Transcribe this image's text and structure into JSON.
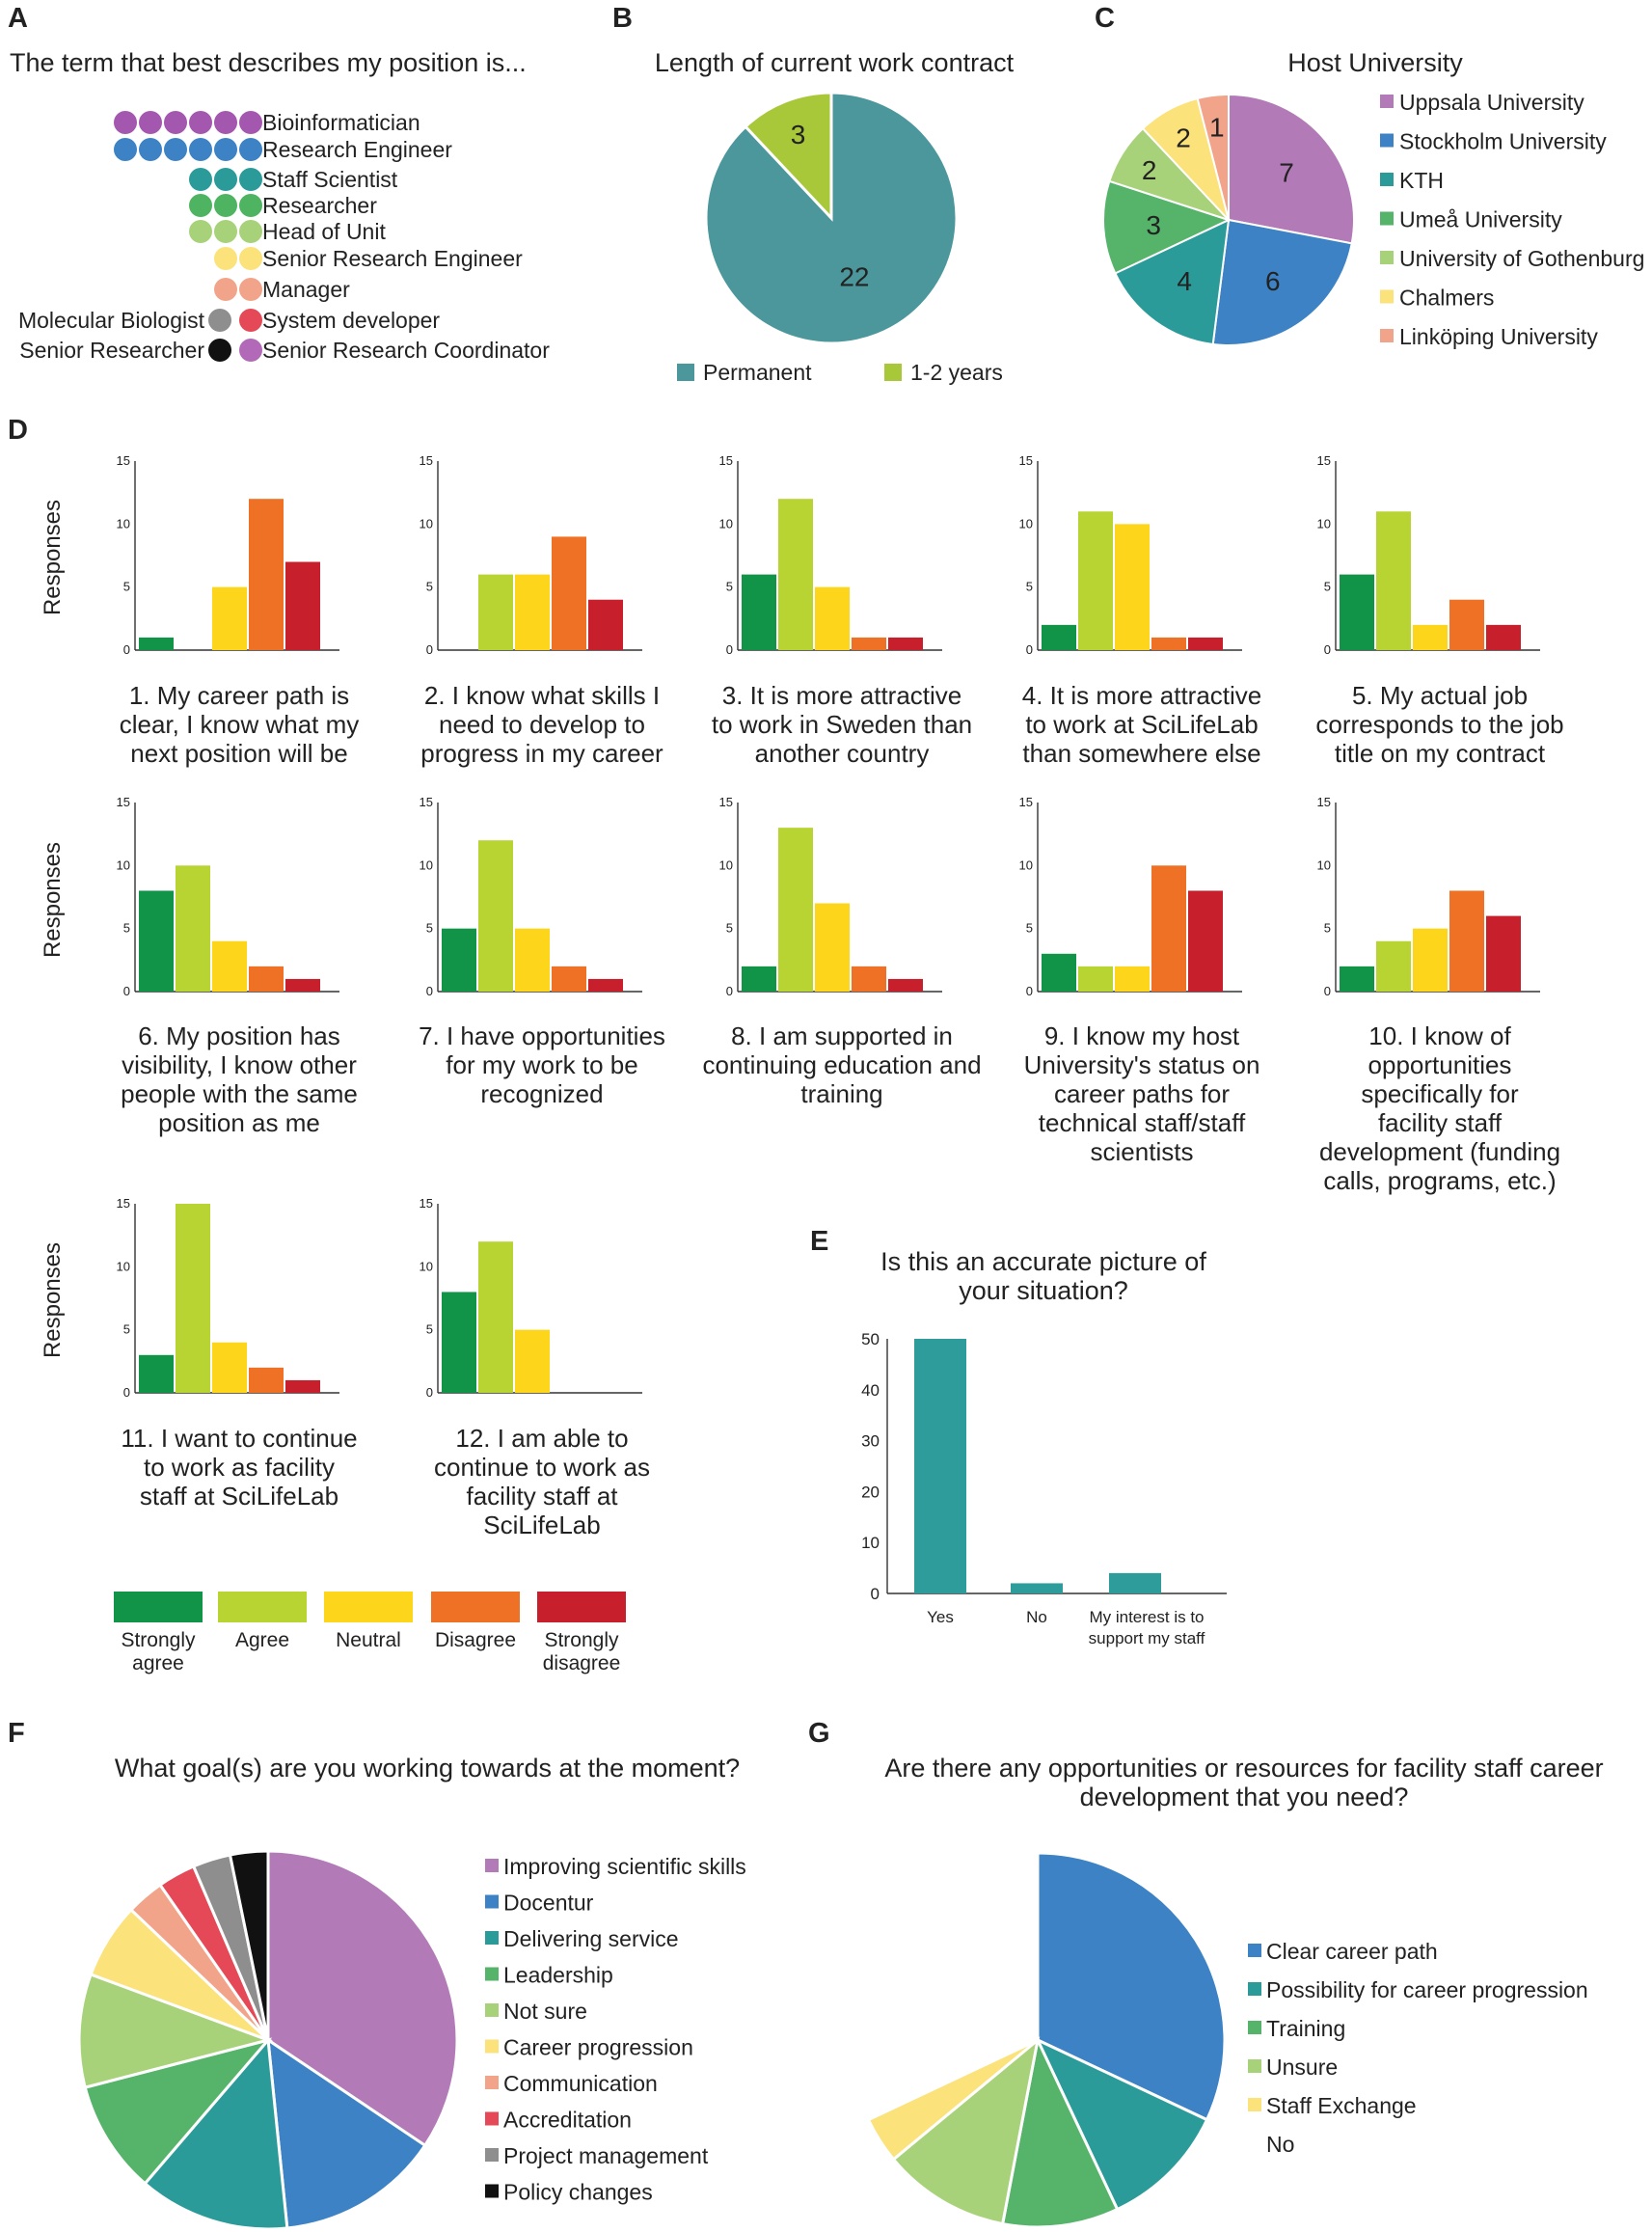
{
  "colors": {
    "strongly_agree": "#119447",
    "agree": "#b8d432",
    "neutral": "#fdd61b",
    "disagree": "#ef7125",
    "strongly_disagree": "#c81f2c",
    "teal": "#2e9c9a"
  },
  "panelA": {
    "label": "A",
    "title": "The term that best describes my position is...",
    "chart_data": {
      "type": "dot",
      "rows": [
        {
          "label": "Bioinformatician",
          "count": 6,
          "color": "#a457ae"
        },
        {
          "label": "Research Engineer",
          "count": 6,
          "color": "#3c82c4"
        },
        {
          "label": "Staff Scientist",
          "count": 3,
          "color": "#2b9b9a"
        },
        {
          "label": "Researcher",
          "count": 3,
          "color": "#4fb461"
        },
        {
          "label": "Head of Unit",
          "count": 3,
          "color": "#a8d27a"
        },
        {
          "label": "Senior Research Engineer",
          "count": 2,
          "color": "#fbe27a"
        },
        {
          "label": "Manager",
          "count": 2,
          "color": "#f2a48a"
        },
        {
          "label": "System developer",
          "count": 1,
          "color": "#e54856"
        },
        {
          "label": "Senior Research Coordinator",
          "count": 1,
          "color": "#b26ab8"
        }
      ],
      "left_rows": [
        {
          "label": "Molecular Biologist",
          "count": 1,
          "color": "#8e8e8e"
        },
        {
          "label": "Senior Researcher",
          "count": 1,
          "color": "#111111"
        }
      ]
    }
  },
  "panelB": {
    "label": "B",
    "title": "Length of current work contract",
    "chart_data": {
      "type": "pie",
      "slices": [
        {
          "label": "Permanent",
          "value": 22,
          "color": "#4b979c"
        },
        {
          "label": "1-2 years",
          "value": 3,
          "color": "#a8c83a"
        }
      ]
    }
  },
  "panelC": {
    "label": "C",
    "title": "Host University",
    "chart_data": {
      "type": "pie",
      "slices": [
        {
          "label": "Uppsala University",
          "value": 7,
          "color": "#b27ab6"
        },
        {
          "label": "Stockholm University",
          "value": 6,
          "color": "#3c82c4"
        },
        {
          "label": "KTH",
          "value": 4,
          "color": "#2b9b9a"
        },
        {
          "label": "Umeå University",
          "value": 3,
          "color": "#55b46a"
        },
        {
          "label": "University of Gothenburg",
          "value": 2,
          "color": "#a8d27a"
        },
        {
          "label": "Chalmers",
          "value": 2,
          "color": "#fbe27a"
        },
        {
          "label": "Linköping University",
          "value": 1,
          "color": "#f2a48a"
        }
      ]
    }
  },
  "panelD": {
    "label": "D",
    "ylabel": "Responses",
    "legend": [
      "Strongly agree",
      "Agree",
      "Neutral",
      "Disagree",
      "Strongly disagree"
    ],
    "chart_data": [
      {
        "type": "bar",
        "title": "1. My career path is clear, I know what my next position will be",
        "ylim": [
          0,
          15
        ],
        "yticks": [
          0,
          5,
          10,
          15
        ],
        "values": [
          1,
          0,
          5,
          12,
          7
        ]
      },
      {
        "type": "bar",
        "title": "2. I know what skills I need to develop to progress in my career",
        "ylim": [
          0,
          15
        ],
        "yticks": [
          0,
          5,
          10,
          15
        ],
        "values": [
          0,
          6,
          6,
          9,
          4
        ]
      },
      {
        "type": "bar",
        "title": "3. It is more attractive to work in Sweden than another country",
        "ylim": [
          0,
          15
        ],
        "yticks": [
          0,
          5,
          10,
          15
        ],
        "values": [
          6,
          12,
          5,
          1,
          1
        ]
      },
      {
        "type": "bar",
        "title": "4. It is more attractive to work at SciLifeLab than somewhere else",
        "ylim": [
          0,
          15
        ],
        "yticks": [
          0,
          5,
          10,
          15
        ],
        "values": [
          2,
          11,
          10,
          1,
          1
        ]
      },
      {
        "type": "bar",
        "title": "5. My actual job corresponds to the job title on my contract",
        "ylim": [
          0,
          15
        ],
        "yticks": [
          0,
          5,
          10,
          15
        ],
        "values": [
          6,
          11,
          2,
          4,
          2
        ]
      },
      {
        "type": "bar",
        "title": "6. My position has visibility, I know other people with the same position as me",
        "ylim": [
          0,
          15
        ],
        "yticks": [
          0,
          5,
          10,
          15
        ],
        "values": [
          8,
          10,
          4,
          2,
          1
        ]
      },
      {
        "type": "bar",
        "title": "7. I have opportunities for my work to be recognized",
        "ylim": [
          0,
          15
        ],
        "yticks": [
          0,
          5,
          10,
          15
        ],
        "values": [
          5,
          12,
          5,
          2,
          1
        ]
      },
      {
        "type": "bar",
        "title": "8. I am supported in continuing education and training",
        "ylim": [
          0,
          15
        ],
        "yticks": [
          0,
          5,
          10,
          15
        ],
        "values": [
          2,
          13,
          7,
          2,
          1
        ]
      },
      {
        "type": "bar",
        "title": "9. I know my host University's status on career paths for technical staff/staff scientists",
        "ylim": [
          0,
          15
        ],
        "yticks": [
          0,
          5,
          10,
          15
        ],
        "values": [
          3,
          2,
          2,
          10,
          8
        ]
      },
      {
        "type": "bar",
        "title": "10. I know of opportunities specifically for facility staff development (funding calls, programs, etc.)",
        "ylim": [
          0,
          15
        ],
        "yticks": [
          0,
          5,
          10,
          15
        ],
        "values": [
          2,
          4,
          5,
          8,
          6
        ]
      },
      {
        "type": "bar",
        "title": "11. I want to continue to work as facility staff at SciLifeLab",
        "ylim": [
          0,
          15
        ],
        "yticks": [
          0,
          5,
          10,
          15
        ],
        "values": [
          3,
          15,
          4,
          2,
          1
        ]
      },
      {
        "type": "bar",
        "title": "12. I am able to continue to work as facility staff at SciLifeLab",
        "ylim": [
          0,
          15
        ],
        "yticks": [
          0,
          5,
          10,
          15
        ],
        "values": [
          8,
          12,
          5,
          0,
          0
        ]
      }
    ]
  },
  "panelE": {
    "label": "E",
    "title": "Is this an accurate picture of your situation?",
    "chart_data": {
      "type": "bar",
      "categories": [
        "Yes",
        "No",
        "My interest is to support my staff"
      ],
      "values": [
        50,
        2,
        4
      ],
      "ylim": [
        0,
        50
      ],
      "yticks": [
        0,
        10,
        20,
        30,
        40,
        50
      ]
    }
  },
  "panelF": {
    "label": "F",
    "title": "What goal(s) are you working towards at the moment?",
    "chart_data": {
      "type": "pie",
      "slices": [
        {
          "label": "Improving scientific skills",
          "value": 32,
          "color": "#b27ab6"
        },
        {
          "label": "Docentur",
          "value": 13,
          "color": "#3c82c4"
        },
        {
          "label": "Delivering service",
          "value": 12,
          "color": "#2b9b9a"
        },
        {
          "label": "Leadership",
          "value": 9,
          "color": "#55b46a"
        },
        {
          "label": "Not sure",
          "value": 9,
          "color": "#a8d27a"
        },
        {
          "label": "Career progression",
          "value": 6,
          "color": "#fbe27a"
        },
        {
          "label": "Communication",
          "value": 3,
          "color": "#f2a48a"
        },
        {
          "label": "Accreditation",
          "value": 3,
          "color": "#e54856"
        },
        {
          "label": "Project management",
          "value": 3,
          "color": "#8e8e8e"
        },
        {
          "label": "Policy changes",
          "value": 3,
          "color": "#111111"
        }
      ]
    }
  },
  "panelG": {
    "label": "G",
    "title": "Are there any opportunities or resources for facility staff career development that you need?",
    "chart_data": {
      "type": "pie",
      "slices": [
        {
          "label": "Clear career path",
          "value": 32,
          "color": "#3c82c4"
        },
        {
          "label": "Possibility for career progression",
          "value": 11,
          "color": "#2b9b9a"
        },
        {
          "label": "Training",
          "value": 10,
          "color": "#55b46a"
        },
        {
          "label": "Unsure",
          "value": 11,
          "color": "#a8d27a"
        },
        {
          "label": "Staff Exchange",
          "value": 4,
          "color": "#fbe27a"
        },
        {
          "label": "No",
          "value": 32,
          "color": "#ffffff"
        }
      ]
    }
  }
}
